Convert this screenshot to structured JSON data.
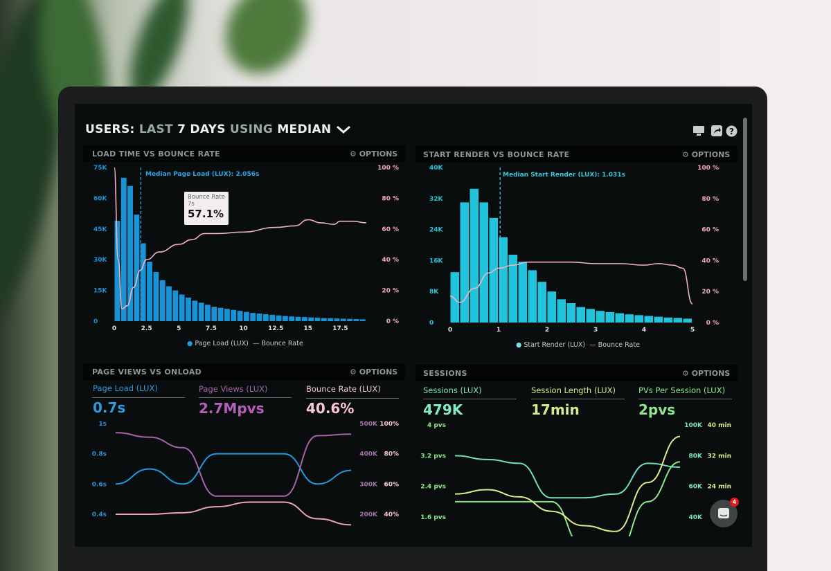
{
  "header": {
    "title_users": "USERS:",
    "title_last": "LAST",
    "title_days": "7 DAYS",
    "title_using": "USING",
    "title_median": "MEDIAN",
    "dropdown_icon": "chevron-down-icon",
    "icons": [
      "monitor-icon",
      "share-icon",
      "help-icon"
    ]
  },
  "panels": {
    "load": {
      "title": "LOAD TIME VS BOUNCE RATE",
      "options": "OPTIONS",
      "median_label": "Median Page Load (LUX): 2.056s",
      "y_left_ticks": [
        "75K",
        "60K",
        "45K",
        "30K",
        "15K",
        "0"
      ],
      "y_right_ticks": [
        "100 %",
        "80 %",
        "60 %",
        "40 %",
        "20 %",
        "0 %"
      ],
      "x_ticks": [
        "0",
        "2.5",
        "5",
        "7.5",
        "10",
        "12.5",
        "15",
        "17.5"
      ],
      "legend": [
        "Page Load (LUX)",
        "Bounce Rate"
      ],
      "tooltip": {
        "title": "Bounce Rate",
        "sub": "7s",
        "value": "57.1%"
      }
    },
    "render": {
      "title": "START RENDER VS BOUNCE RATE",
      "options": "OPTIONS",
      "median_label": "Median Start Render (LUX): 1.031s",
      "y_left_ticks": [
        "40K",
        "32K",
        "24K",
        "16K",
        "8K",
        "0"
      ],
      "y_right_ticks": [
        "100 %",
        "80 %",
        "60 %",
        "40 %",
        "20 %",
        "0 %"
      ],
      "x_ticks": [
        "0",
        "1",
        "2",
        "3",
        "4",
        "5"
      ],
      "legend": [
        "Start Render (LUX)",
        "Bounce Rate"
      ]
    },
    "views": {
      "title": "PAGE VIEWS VS ONLOAD",
      "options": "OPTIONS",
      "metrics": [
        {
          "label": "Page Load (LUX)",
          "value": "0.7s"
        },
        {
          "label": "Page Views (LUX)",
          "value": "2.7Mpvs"
        },
        {
          "label": "Bounce Rate (LUX)",
          "value": "40.6%"
        }
      ],
      "y_left_ticks": [
        "1s",
        "0.8s",
        "0.6s",
        "0.4s"
      ],
      "y_right1_ticks": [
        "500K",
        "400K",
        "300K",
        "200K"
      ],
      "y_right2_ticks": [
        "100%",
        "80%",
        "60%",
        "40%"
      ]
    },
    "sessions": {
      "title": "SESSIONS",
      "options": "OPTIONS",
      "metrics": [
        {
          "label": "Sessions (LUX)",
          "value": "479K"
        },
        {
          "label": "Session Length (LUX)",
          "value": "17min"
        },
        {
          "label": "PVs Per Session (LUX)",
          "value": "2pvs"
        }
      ],
      "y_left_ticks": [
        "4 pvs",
        "3.2 pvs",
        "2.4 pvs",
        "1.6 pvs"
      ],
      "y_right1_ticks": [
        "100K",
        "80K",
        "60K",
        "40K"
      ],
      "y_right2_ticks": [
        "40 min",
        "32 min",
        "24 min"
      ]
    }
  },
  "chat": {
    "badge": "4"
  },
  "colors": {
    "blue": "#1e9be0",
    "cyan": "#22c7de",
    "pink": "#f0a3b8",
    "purple": "#a665a8",
    "teal": "#6fe0bf",
    "green": "#8ee88a",
    "yellow": "#dfe98a"
  },
  "chart_data": [
    {
      "type": "bar",
      "title": "LOAD TIME VS BOUNCE RATE",
      "x_start": 0,
      "bin_width": 0.5,
      "ylim": [
        0,
        75000
      ],
      "y2lim": [
        0,
        100
      ],
      "median": 2.056,
      "series": [
        {
          "name": "Page Load (LUX)",
          "values": [
            49000,
            70000,
            66000,
            52000,
            38000,
            29000,
            24000,
            20000,
            17000,
            15000,
            13000,
            11500,
            10000,
            9000,
            8000,
            7000,
            6500,
            6000,
            5500,
            5000,
            4500,
            4000,
            3700,
            3400,
            3100,
            2800,
            2500,
            2300,
            2100,
            2000,
            1800,
            1700,
            1500,
            1400,
            1300,
            1200,
            1100,
            1000,
            900
          ]
        },
        {
          "name": "Bounce Rate",
          "type": "line",
          "x": [
            0,
            0.3,
            0.6,
            1,
            1.5,
            2,
            2.5,
            3.5,
            5,
            6,
            7,
            8,
            10,
            12.5,
            14,
            15,
            16,
            17,
            17.5,
            18.5,
            19.5
          ],
          "values": [
            100,
            40,
            8,
            10,
            22,
            33,
            40,
            45,
            50,
            53,
            57,
            57,
            58,
            61,
            62,
            66,
            64,
            63,
            65,
            65,
            64
          ]
        }
      ]
    },
    {
      "type": "bar",
      "title": "START RENDER VS BOUNCE RATE",
      "x_start": 0,
      "bin_width": 0.2,
      "ylim": [
        0,
        40000
      ],
      "y2lim": [
        0,
        100
      ],
      "median": 1.031,
      "series": [
        {
          "name": "Start Render (LUX)",
          "values": [
            13000,
            31000,
            34500,
            31000,
            27000,
            22000,
            17500,
            15700,
            13500,
            10500,
            8000,
            6000,
            5000,
            4000,
            3500,
            3000,
            2700,
            2400,
            2100,
            1900,
            1700,
            1500,
            1300,
            1200,
            1000
          ]
        },
        {
          "name": "Bounce Rate",
          "type": "line",
          "x": [
            0,
            0.2,
            0.5,
            0.8,
            1,
            1.3,
            1.6,
            2,
            2.5,
            3,
            3.5,
            4,
            4.3,
            4.6,
            4.8,
            5
          ],
          "values": [
            17,
            13,
            22,
            32,
            35,
            37,
            39,
            39,
            39,
            38,
            38,
            37,
            38,
            37,
            35,
            12
          ]
        }
      ]
    },
    {
      "type": "line",
      "title": "PAGE VIEWS VS ONLOAD",
      "x": [
        0,
        1,
        2,
        3,
        4,
        5,
        6,
        7
      ],
      "series": [
        {
          "name": "Page Load (LUX)",
          "axis": "left",
          "ylim": [
            0.4,
            1
          ],
          "values": [
            0.6,
            0.7,
            0.6,
            0.8,
            0.8,
            0.8,
            0.6,
            0.69
          ]
        },
        {
          "name": "Page Views (LUX)",
          "axis": "right1",
          "ylim": [
            200000,
            500000
          ],
          "values": [
            470000,
            455000,
            420000,
            260000,
            260000,
            260000,
            460000,
            465000
          ]
        },
        {
          "name": "Bounce Rate (LUX)",
          "axis": "right2",
          "ylim": [
            40,
            100
          ],
          "values": [
            40,
            40,
            41,
            45,
            48,
            48,
            37,
            33
          ]
        }
      ]
    },
    {
      "type": "line",
      "title": "SESSIONS",
      "x": [
        0,
        1,
        2,
        3,
        4,
        5,
        6,
        7
      ],
      "series": [
        {
          "name": "PVs Per Session (LUX)",
          "axis": "left",
          "ylim": [
            1.6,
            4
          ],
          "values": [
            3.2,
            3.1,
            3.0,
            2.1,
            2.1,
            2.2,
            3.0,
            2.9
          ]
        },
        {
          "name": "Sessions (LUX)",
          "axis": "right1",
          "ylim": [
            40000,
            100000
          ],
          "values": [
            50000,
            50000,
            50000,
            50000,
            20000,
            15000,
            50000,
            76000
          ]
        },
        {
          "name": "Session Length (LUX)",
          "axis": "right2",
          "ylim": [
            8,
            40
          ],
          "values": [
            16,
            17.5,
            15,
            10,
            5,
            3,
            20,
            36
          ]
        }
      ]
    }
  ]
}
